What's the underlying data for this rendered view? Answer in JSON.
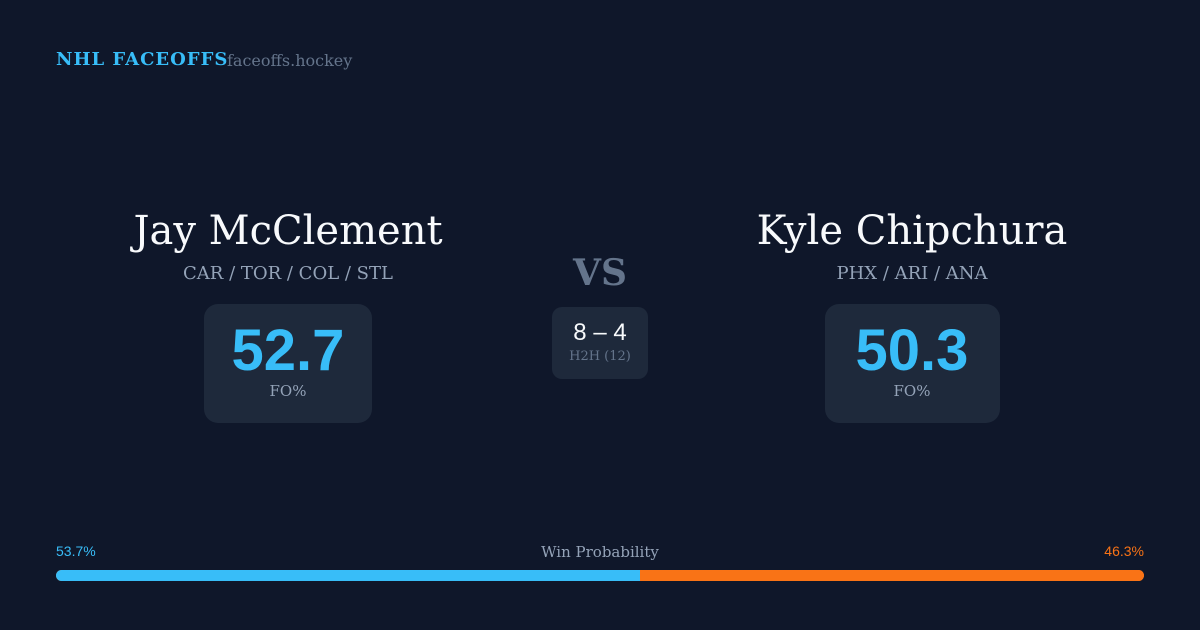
{
  "header": {
    "brand": "NHL FACEOFFS",
    "site": "faceoffs.hockey"
  },
  "player1": {
    "name": "Jay McClement",
    "teams": "CAR / TOR / COL / STL",
    "fo_pct": "52.7",
    "fo_label": "FO%"
  },
  "player2": {
    "name": "Kyle Chipchura",
    "teams": "PHX / ARI / ANA",
    "fo_pct": "50.3",
    "fo_label": "FO%"
  },
  "vs": "VS",
  "h2h": {
    "score": "8 – 4",
    "label": "H2H (12)"
  },
  "win_probability": {
    "title": "Win Probability",
    "left": "53.7%",
    "right": "46.3%",
    "left_value": 53.7,
    "right_value": 46.3
  },
  "colors": {
    "accent": "#38bdf8",
    "opponent": "#f97316",
    "background": "#0f172a",
    "card": "#1e293b"
  }
}
